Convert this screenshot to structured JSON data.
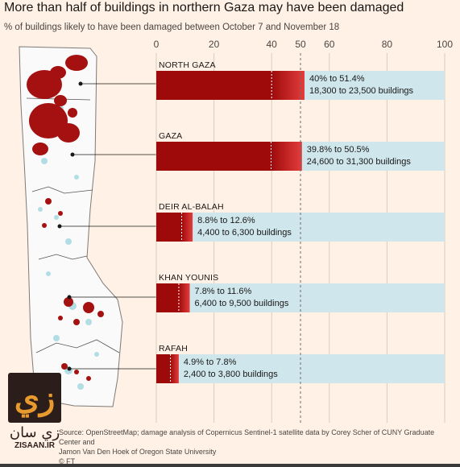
{
  "header": {
    "title": "More than half of buildings in northern Gaza may have been damaged",
    "subtitle": "% of buildings likely to have been damaged between October 7 and November 18"
  },
  "chart_data": {
    "type": "bar",
    "xlim": [
      0,
      100
    ],
    "ticks": [
      "0",
      "20",
      "40",
      "50",
      "60",
      "80",
      "100"
    ],
    "tick_values": [
      0,
      20,
      40,
      50,
      60,
      80,
      100
    ],
    "reference_line": 50,
    "categories": [
      "NORTH GAZA",
      "GAZA",
      "DEIR AL-BALAH",
      "KHAN YOUNIS",
      "RAFAH"
    ],
    "series": [
      {
        "values": [
          40,
          39.8,
          8.8,
          7.8,
          4.9
        ]
      },
      {
        "values": [
          51.4,
          50.5,
          12.6,
          11.6,
          7.8
        ]
      }
    ],
    "annotations": [
      {
        "range": "40% to 51.4%",
        "buildings": "18,300 to 23,500 buildings"
      },
      {
        "range": "39.8% to 50.5%",
        "buildings": "24,600 to 31,300 buildings"
      },
      {
        "range": "8.8% to 12.6%",
        "buildings": "4,400 to 6,300 buildings"
      },
      {
        "range": "7.8% to 11.6%",
        "buildings": "6,400 to 9,500 buildings"
      },
      {
        "range": "4.9% to 7.8%",
        "buildings": "2,400 to 3,800 buildings"
      }
    ],
    "colors": {
      "bar_dark": "#9e0a0a",
      "bar_light": "#e33d3d",
      "track": "#cfe7ec"
    }
  },
  "source": {
    "line1": "Source: OpenStreetMap; damage analysis of Copernicus Sentinel-1 satellite data by Corey Scher of CUNY Graduate Center and",
    "line2": "Jamon Van Den Hoek of Oregon State University",
    "line3": "© FT"
  },
  "watermark": {
    "script": "زي",
    "name": "زي سان",
    "domain": "ZISAAN.IR"
  }
}
